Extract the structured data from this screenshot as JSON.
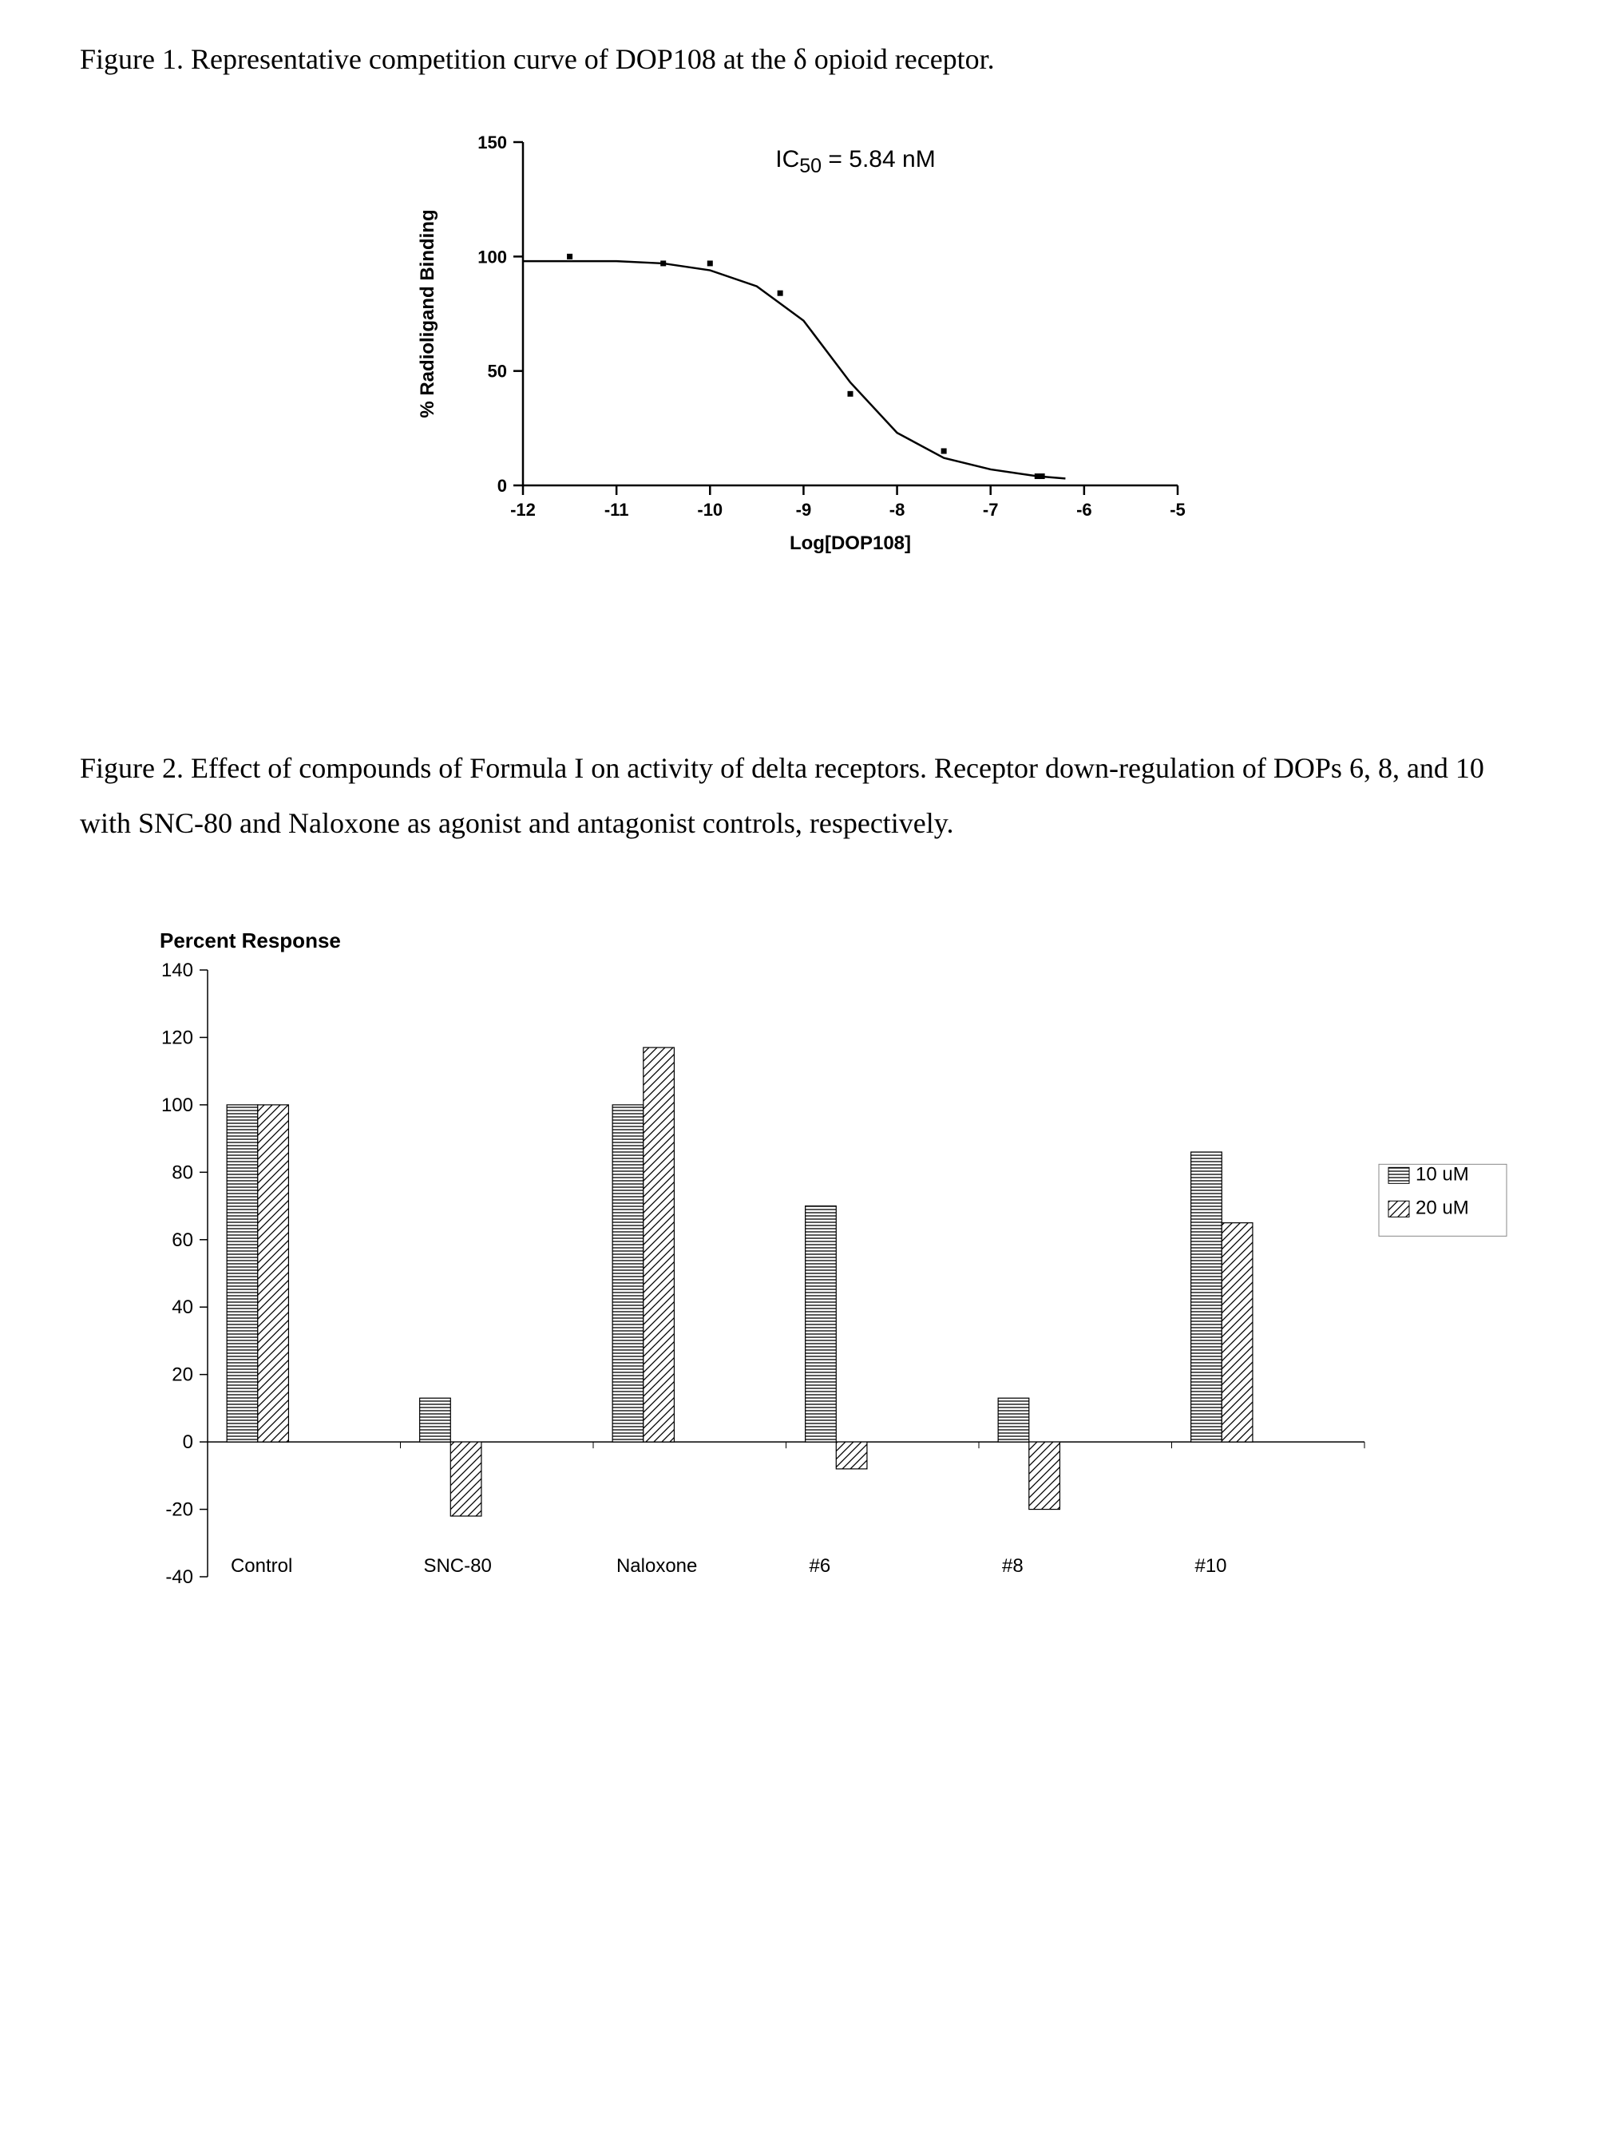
{
  "figure1": {
    "caption_prefix": "Figure 1.    Representative competition curve of DOP108 at the ",
    "caption_greek": "δ",
    "caption_suffix": " opioid receptor.",
    "chart": {
      "type": "scatter-with-curve",
      "annotation_html": "IC<sub>50</sub> = 5.84 nM",
      "annotation_fontsize": 30,
      "xlabel": "Log[DOP108]",
      "ylabel": "% Radioligand Binding",
      "label_fontsize": 24,
      "label_fontweight": "bold",
      "tick_fontsize": 22,
      "tick_fontweight": "bold",
      "xlim": [
        -12,
        -5
      ],
      "ylim": [
        0,
        150
      ],
      "xtick_step": 1,
      "ytick_step": 50,
      "xticks": [
        -12,
        -11,
        -10,
        -9,
        -8,
        -7,
        -6,
        -5
      ],
      "yticks": [
        0,
        50,
        100,
        150
      ],
      "marker_size": 7,
      "marker_color": "#000000",
      "line_color": "#000000",
      "line_width": 2.5,
      "axis_color": "#000000",
      "axis_width": 2.5,
      "background_color": "#ffffff",
      "points": [
        {
          "x": -11.5,
          "y": 100
        },
        {
          "x": -10.5,
          "y": 97
        },
        {
          "x": -10.0,
          "y": 97
        },
        {
          "x": -9.25,
          "y": 84
        },
        {
          "x": -8.5,
          "y": 40
        },
        {
          "x": -7.5,
          "y": 15
        },
        {
          "x": -6.5,
          "y": 4
        },
        {
          "x": -6.45,
          "y": 4
        }
      ],
      "curve": [
        {
          "x": -12.0,
          "y": 98
        },
        {
          "x": -11.5,
          "y": 98
        },
        {
          "x": -11.0,
          "y": 98
        },
        {
          "x": -10.5,
          "y": 97
        },
        {
          "x": -10.0,
          "y": 94
        },
        {
          "x": -9.5,
          "y": 87
        },
        {
          "x": -9.0,
          "y": 72
        },
        {
          "x": -8.5,
          "y": 45
        },
        {
          "x": -8.0,
          "y": 23
        },
        {
          "x": -7.5,
          "y": 12
        },
        {
          "x": -7.0,
          "y": 7
        },
        {
          "x": -6.5,
          "y": 4
        },
        {
          "x": -6.2,
          "y": 3
        }
      ]
    }
  },
  "figure2": {
    "caption": "Figure 2.    Effect of compounds of Formula I on activity of delta receptors.  Receptor down-regulation of DOPs 6, 8, and 10 with SNC-80 and Naloxone as agonist and antagonist controls, respectively.",
    "chart": {
      "type": "bar",
      "title": "Percent Response",
      "title_fontsize": 26,
      "title_fontweight": "bold",
      "categories": [
        "Control",
        "SNC-80",
        "Naloxone",
        "#6",
        "#8",
        "#10"
      ],
      "series": [
        {
          "name": "10 uM",
          "pattern": "horizontal",
          "values": [
            100,
            13,
            100,
            70,
            13,
            86
          ]
        },
        {
          "name": "20 uM",
          "pattern": "diagonal",
          "values": [
            100,
            -22,
            117,
            -8,
            -20,
            65
          ]
        }
      ],
      "ylim": [
        -40,
        140
      ],
      "ytick_step": 20,
      "yticks": [
        -40,
        -20,
        0,
        20,
        40,
        60,
        80,
        100,
        120,
        140
      ],
      "tick_fontsize": 24,
      "category_fontsize": 24,
      "legend_fontsize": 24,
      "bar_border_color": "#000000",
      "bar_border_width": 1.2,
      "bar_fill": "#ffffff",
      "pattern_color": "#000000",
      "axis_color": "#000000",
      "axis_width": 1.5,
      "tick_mark_len": 10,
      "background_color": "#ffffff",
      "bar_group_width_ratio": 0.32,
      "bar_gap_ratio": 0.0
    }
  }
}
